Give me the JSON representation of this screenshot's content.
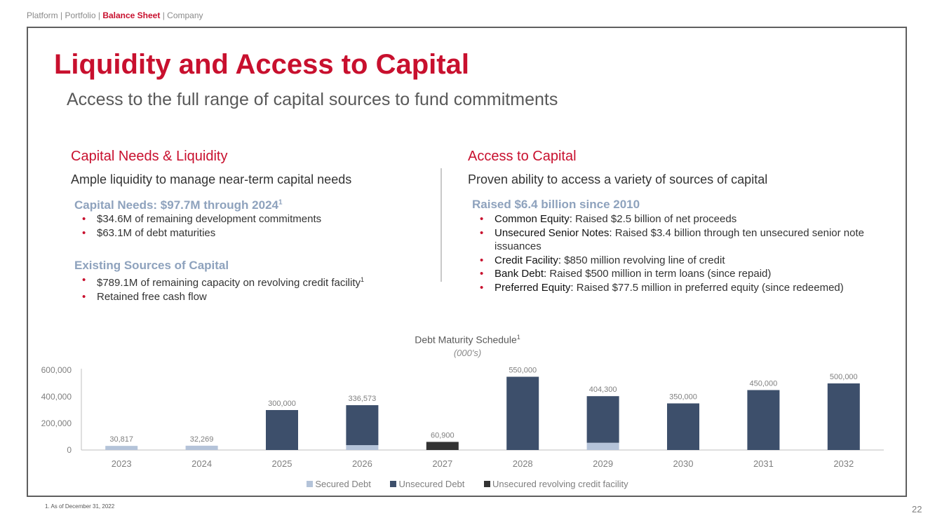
{
  "nav": {
    "item1": "Platform",
    "item2": "Portfolio",
    "item3": "Balance Sheet",
    "item4": "Company",
    "separator": " | "
  },
  "title": "Liquidity and Access to Capital",
  "subtitle": "Access to the full range of capital sources to fund commitments",
  "left": {
    "heading": "Capital Needs & Liquidity",
    "subheading": "Ample liquidity to manage near-term capital needs",
    "needs_head": "Capital Needs: $97.7M through 2024",
    "needs_head_sup": "1",
    "needs": [
      "$34.6M of remaining development commitments",
      "$63.1M of debt maturities"
    ],
    "sources_head": "Existing Sources of Capital",
    "sources": [
      {
        "text": "$789.1M of remaining capacity on revolving credit facility",
        "sup": "1"
      },
      {
        "text": "Retained free cash flow",
        "sup": ""
      }
    ]
  },
  "right": {
    "heading": "Access to Capital",
    "subheading": "Proven ability to access a variety of sources of capital",
    "raised_head": "Raised $6.4 billion since 2010",
    "items": [
      {
        "label": "Common Equity:",
        "text": " Raised $2.5 billion of net proceeds"
      },
      {
        "label": "Unsecured Senior Notes:",
        "text": " Raised $3.4 billion through ten unsecured senior note issuances"
      },
      {
        "label": "Credit Facility:",
        "text": " $850 million revolving line of credit"
      },
      {
        "label": "Bank Debt:",
        "text": " Raised $500 million in term loans (since repaid)"
      },
      {
        "label": "Preferred Equity:",
        "text": " Raised $77.5 million in preferred equity (since redeemed)"
      }
    ]
  },
  "chart_data": {
    "type": "bar",
    "stacked": true,
    "title": "Debt Maturity Schedule",
    "title_sup": "1",
    "subtitle": "(000's)",
    "categories": [
      "2023",
      "2024",
      "2025",
      "2026",
      "2027",
      "2028",
      "2029",
      "2030",
      "2031",
      "2032"
    ],
    "series": [
      {
        "name": "Secured Debt",
        "color": "#b4c3d9",
        "values": [
          30817,
          32269,
          0,
          36573,
          0,
          0,
          54300,
          0,
          0,
          0
        ]
      },
      {
        "name": "Unsecured Debt",
        "color": "#3d4f6b",
        "values": [
          0,
          0,
          300000,
          300000,
          0,
          550000,
          350000,
          350000,
          450000,
          500000
        ]
      },
      {
        "name": "Unsecured revolving credit facility",
        "color": "#333333",
        "values": [
          0,
          0,
          0,
          0,
          60900,
          0,
          0,
          0,
          0,
          0
        ]
      }
    ],
    "totals": [
      30817,
      32269,
      300000,
      336573,
      60900,
      550000,
      404300,
      350000,
      450000,
      500000
    ],
    "total_labels": [
      "30,817",
      "32,269",
      "300,000",
      "336,573",
      "60,900",
      "550,000",
      "404,300",
      "350,000",
      "450,000",
      "500,000"
    ],
    "y_ticks": [
      0,
      200000,
      400000,
      600000
    ],
    "y_tick_labels": [
      "0",
      "200,000",
      "400,000",
      "600,000"
    ],
    "ylim": [
      0,
      600000
    ],
    "grid": false,
    "legend": "bottom"
  },
  "footnote": "1.   As of December 31, 2022",
  "page_number": "22"
}
